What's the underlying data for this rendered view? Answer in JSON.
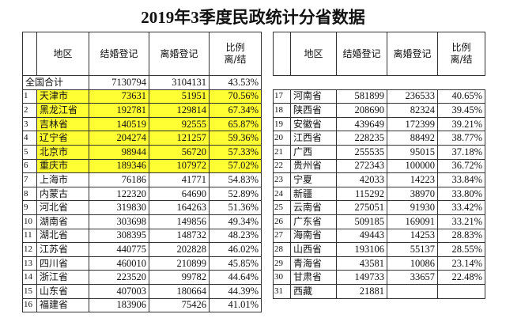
{
  "title": "2019年3季度民政统计分省数据",
  "left_table": {
    "header": {
      "region": "地区",
      "marriage": "结婚登记",
      "divorce": "离婚登记",
      "ratio": [
        "比例",
        "离/结"
      ]
    },
    "rows": [
      {
        "region": "全国合计",
        "marriage": 7130794,
        "divorce": 3104131,
        "ratio": "43.53%"
      },
      {
        "rank": 1,
        "region": "天津市",
        "marriage": 73631,
        "divorce": 51951,
        "ratio": "70.56%"
      },
      {
        "rank": 2,
        "region": "黑龙江省",
        "marriage": 192781,
        "divorce": 129814,
        "ratio": "67.34%"
      },
      {
        "rank": 3,
        "region": "吉林省",
        "marriage": 140519,
        "divorce": 92555,
        "ratio": "65.87%"
      },
      {
        "rank": 4,
        "region": "辽宁省",
        "marriage": 204274,
        "divorce": 121257,
        "ratio": "59.36%"
      },
      {
        "rank": 5,
        "region": "北京市",
        "marriage": 98944,
        "divorce": 56720,
        "ratio": "57.33%"
      },
      {
        "rank": 6,
        "region": "重庆市",
        "marriage": 189346,
        "divorce": 107972,
        "ratio": "57.02%"
      },
      {
        "rank": 7,
        "region": "上海市",
        "marriage": 76186,
        "divorce": 41771,
        "ratio": "54.83%"
      },
      {
        "rank": 8,
        "region": "内蒙古",
        "marriage": 122320,
        "divorce": 64690,
        "ratio": "52.89%"
      },
      {
        "rank": 9,
        "region": "河北省",
        "marriage": 319830,
        "divorce": 164263,
        "ratio": "51.36%"
      },
      {
        "rank": 10,
        "region": "湖南省",
        "marriage": 303698,
        "divorce": 149856,
        "ratio": "49.34%"
      },
      {
        "rank": 11,
        "region": "湖北省",
        "marriage": 308395,
        "divorce": 148732,
        "ratio": "48.23%"
      },
      {
        "rank": 12,
        "region": "江苏省",
        "marriage": 440775,
        "divorce": 202828,
        "ratio": "46.02%"
      },
      {
        "rank": 13,
        "region": "四川省",
        "marriage": 460010,
        "divorce": 210899,
        "ratio": "45.85%"
      },
      {
        "rank": 14,
        "region": "浙江省",
        "marriage": 223520,
        "divorce": 99782,
        "ratio": "44.64%"
      },
      {
        "rank": 15,
        "region": "山东省",
        "marriage": 407003,
        "divorce": 180664,
        "ratio": "44.39%"
      },
      {
        "rank": 16,
        "region": "福建省",
        "marriage": 183906,
        "divorce": 75426,
        "ratio": "41.01%"
      }
    ]
  },
  "right_table": {
    "header": {
      "region": "地区",
      "marriage": "结婚登记",
      "divorce": "离婚登记",
      "ratio": [
        "比例",
        "离/结"
      ]
    },
    "rows": [
      {
        "rank": 17,
        "region": "河南省",
        "marriage": 581899,
        "divorce": 236533,
        "ratio": "40.65%"
      },
      {
        "rank": 18,
        "region": "陕西省",
        "marriage": 208690,
        "divorce": 82324,
        "ratio": "39.45%"
      },
      {
        "rank": 19,
        "region": "安徽省",
        "marriage": 439649,
        "divorce": 172399,
        "ratio": "39.21%"
      },
      {
        "rank": 20,
        "region": "江西省",
        "marriage": 228235,
        "divorce": 88492,
        "ratio": "38.77%"
      },
      {
        "rank": 21,
        "region": "广西",
        "marriage": 255535,
        "divorce": 95015,
        "ratio": "37.18%"
      },
      {
        "rank": 22,
        "region": "贵州省",
        "marriage": 272343,
        "divorce": 100000,
        "ratio": "36.72%"
      },
      {
        "rank": 23,
        "region": "宁夏",
        "marriage": 42033,
        "divorce": 14223,
        "ratio": "33.84%"
      },
      {
        "rank": 24,
        "region": "新疆",
        "marriage": 115292,
        "divorce": 38970,
        "ratio": "33.80%"
      },
      {
        "rank": 25,
        "region": "云南省",
        "marriage": 275051,
        "divorce": 91930,
        "ratio": "33.42%"
      },
      {
        "rank": 26,
        "region": "广东省",
        "marriage": 509185,
        "divorce": 169091,
        "ratio": "33.21%"
      },
      {
        "rank": 27,
        "region": "海南省",
        "marriage": 49443,
        "divorce": 14253,
        "ratio": "28.83%"
      },
      {
        "rank": 28,
        "region": "山西省",
        "marriage": 193106,
        "divorce": 55137,
        "ratio": "28.55%"
      },
      {
        "rank": 29,
        "region": "青海省",
        "marriage": 43581,
        "divorce": 10086,
        "ratio": "23.14%"
      },
      {
        "rank": 30,
        "region": "甘肃省",
        "marriage": 149733,
        "divorce": 33657,
        "ratio": "22.48%"
      },
      {
        "rank": 31,
        "region": "西藏",
        "marriage": 21881
      }
    ]
  }
}
